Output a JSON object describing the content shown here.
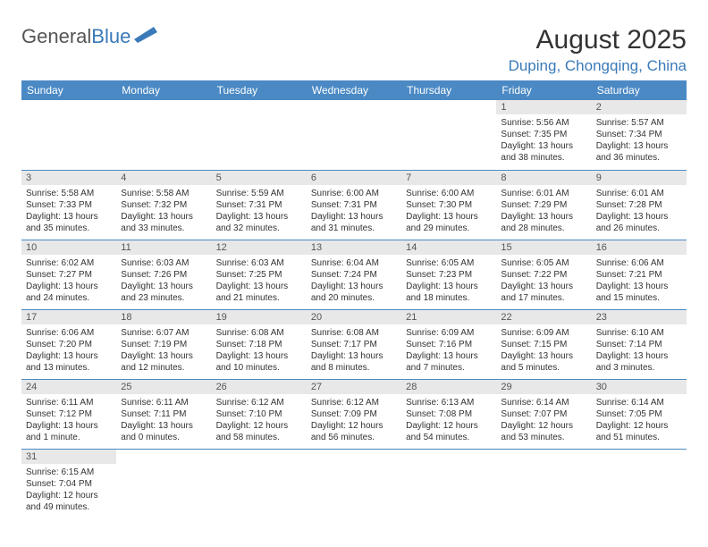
{
  "logo": {
    "part1": "General",
    "part2": "Blue"
  },
  "title": "August 2025",
  "location": "Duping, Chongqing, China",
  "colors": {
    "header_bg": "#4a89c4",
    "header_text": "#ffffff",
    "accent": "#3a7ab8",
    "daynum_bg": "#e8e8e8",
    "text": "#333333",
    "divider": "#4a89c4",
    "background": "#ffffff"
  },
  "daynames": [
    "Sunday",
    "Monday",
    "Tuesday",
    "Wednesday",
    "Thursday",
    "Friday",
    "Saturday"
  ],
  "weeks": [
    [
      null,
      null,
      null,
      null,
      null,
      {
        "n": "1",
        "sunrise": "Sunrise: 5:56 AM",
        "sunset": "Sunset: 7:35 PM",
        "daylight": "Daylight: 13 hours and 38 minutes."
      },
      {
        "n": "2",
        "sunrise": "Sunrise: 5:57 AM",
        "sunset": "Sunset: 7:34 PM",
        "daylight": "Daylight: 13 hours and 36 minutes."
      }
    ],
    [
      {
        "n": "3",
        "sunrise": "Sunrise: 5:58 AM",
        "sunset": "Sunset: 7:33 PM",
        "daylight": "Daylight: 13 hours and 35 minutes."
      },
      {
        "n": "4",
        "sunrise": "Sunrise: 5:58 AM",
        "sunset": "Sunset: 7:32 PM",
        "daylight": "Daylight: 13 hours and 33 minutes."
      },
      {
        "n": "5",
        "sunrise": "Sunrise: 5:59 AM",
        "sunset": "Sunset: 7:31 PM",
        "daylight": "Daylight: 13 hours and 32 minutes."
      },
      {
        "n": "6",
        "sunrise": "Sunrise: 6:00 AM",
        "sunset": "Sunset: 7:31 PM",
        "daylight": "Daylight: 13 hours and 31 minutes."
      },
      {
        "n": "7",
        "sunrise": "Sunrise: 6:00 AM",
        "sunset": "Sunset: 7:30 PM",
        "daylight": "Daylight: 13 hours and 29 minutes."
      },
      {
        "n": "8",
        "sunrise": "Sunrise: 6:01 AM",
        "sunset": "Sunset: 7:29 PM",
        "daylight": "Daylight: 13 hours and 28 minutes."
      },
      {
        "n": "9",
        "sunrise": "Sunrise: 6:01 AM",
        "sunset": "Sunset: 7:28 PM",
        "daylight": "Daylight: 13 hours and 26 minutes."
      }
    ],
    [
      {
        "n": "10",
        "sunrise": "Sunrise: 6:02 AM",
        "sunset": "Sunset: 7:27 PM",
        "daylight": "Daylight: 13 hours and 24 minutes."
      },
      {
        "n": "11",
        "sunrise": "Sunrise: 6:03 AM",
        "sunset": "Sunset: 7:26 PM",
        "daylight": "Daylight: 13 hours and 23 minutes."
      },
      {
        "n": "12",
        "sunrise": "Sunrise: 6:03 AM",
        "sunset": "Sunset: 7:25 PM",
        "daylight": "Daylight: 13 hours and 21 minutes."
      },
      {
        "n": "13",
        "sunrise": "Sunrise: 6:04 AM",
        "sunset": "Sunset: 7:24 PM",
        "daylight": "Daylight: 13 hours and 20 minutes."
      },
      {
        "n": "14",
        "sunrise": "Sunrise: 6:05 AM",
        "sunset": "Sunset: 7:23 PM",
        "daylight": "Daylight: 13 hours and 18 minutes."
      },
      {
        "n": "15",
        "sunrise": "Sunrise: 6:05 AM",
        "sunset": "Sunset: 7:22 PM",
        "daylight": "Daylight: 13 hours and 17 minutes."
      },
      {
        "n": "16",
        "sunrise": "Sunrise: 6:06 AM",
        "sunset": "Sunset: 7:21 PM",
        "daylight": "Daylight: 13 hours and 15 minutes."
      }
    ],
    [
      {
        "n": "17",
        "sunrise": "Sunrise: 6:06 AM",
        "sunset": "Sunset: 7:20 PM",
        "daylight": "Daylight: 13 hours and 13 minutes."
      },
      {
        "n": "18",
        "sunrise": "Sunrise: 6:07 AM",
        "sunset": "Sunset: 7:19 PM",
        "daylight": "Daylight: 13 hours and 12 minutes."
      },
      {
        "n": "19",
        "sunrise": "Sunrise: 6:08 AM",
        "sunset": "Sunset: 7:18 PM",
        "daylight": "Daylight: 13 hours and 10 minutes."
      },
      {
        "n": "20",
        "sunrise": "Sunrise: 6:08 AM",
        "sunset": "Sunset: 7:17 PM",
        "daylight": "Daylight: 13 hours and 8 minutes."
      },
      {
        "n": "21",
        "sunrise": "Sunrise: 6:09 AM",
        "sunset": "Sunset: 7:16 PM",
        "daylight": "Daylight: 13 hours and 7 minutes."
      },
      {
        "n": "22",
        "sunrise": "Sunrise: 6:09 AM",
        "sunset": "Sunset: 7:15 PM",
        "daylight": "Daylight: 13 hours and 5 minutes."
      },
      {
        "n": "23",
        "sunrise": "Sunrise: 6:10 AM",
        "sunset": "Sunset: 7:14 PM",
        "daylight": "Daylight: 13 hours and 3 minutes."
      }
    ],
    [
      {
        "n": "24",
        "sunrise": "Sunrise: 6:11 AM",
        "sunset": "Sunset: 7:12 PM",
        "daylight": "Daylight: 13 hours and 1 minute."
      },
      {
        "n": "25",
        "sunrise": "Sunrise: 6:11 AM",
        "sunset": "Sunset: 7:11 PM",
        "daylight": "Daylight: 13 hours and 0 minutes."
      },
      {
        "n": "26",
        "sunrise": "Sunrise: 6:12 AM",
        "sunset": "Sunset: 7:10 PM",
        "daylight": "Daylight: 12 hours and 58 minutes."
      },
      {
        "n": "27",
        "sunrise": "Sunrise: 6:12 AM",
        "sunset": "Sunset: 7:09 PM",
        "daylight": "Daylight: 12 hours and 56 minutes."
      },
      {
        "n": "28",
        "sunrise": "Sunrise: 6:13 AM",
        "sunset": "Sunset: 7:08 PM",
        "daylight": "Daylight: 12 hours and 54 minutes."
      },
      {
        "n": "29",
        "sunrise": "Sunrise: 6:14 AM",
        "sunset": "Sunset: 7:07 PM",
        "daylight": "Daylight: 12 hours and 53 minutes."
      },
      {
        "n": "30",
        "sunrise": "Sunrise: 6:14 AM",
        "sunset": "Sunset: 7:05 PM",
        "daylight": "Daylight: 12 hours and 51 minutes."
      }
    ],
    [
      {
        "n": "31",
        "sunrise": "Sunrise: 6:15 AM",
        "sunset": "Sunset: 7:04 PM",
        "daylight": "Daylight: 12 hours and 49 minutes."
      },
      null,
      null,
      null,
      null,
      null,
      null
    ]
  ]
}
